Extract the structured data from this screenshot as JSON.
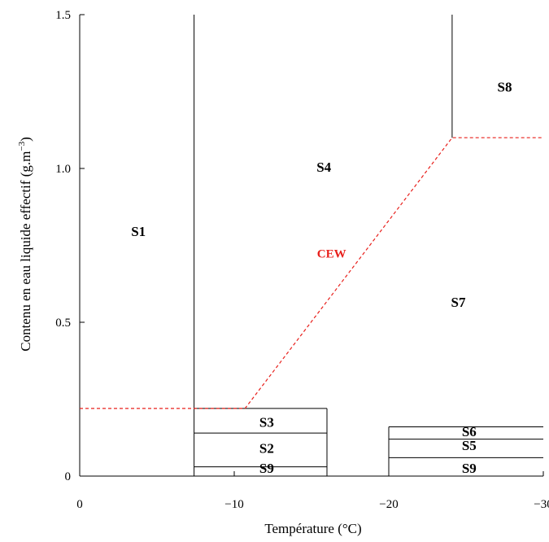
{
  "chart_data": {
    "type": "diagram",
    "xlabel": "Température (°C)",
    "ylabel_main": "Contenu en eau liquide effectif (g.m",
    "ylabel_sup": "−3",
    "ylabel_close": ")",
    "xlim": [
      0,
      -30
    ],
    "ylim": [
      0,
      1.5
    ],
    "x_ticks": [
      {
        "value": 0,
        "label": "0"
      },
      {
        "value": -10,
        "label": "−10"
      },
      {
        "value": -20,
        "label": "−20"
      },
      {
        "value": -30,
        "label": "−30"
      }
    ],
    "y_ticks": [
      {
        "value": 0,
        "label": "0"
      },
      {
        "value": 0.5,
        "label": "0.5"
      },
      {
        "value": 1.0,
        "label": "1.0"
      },
      {
        "value": 1.5,
        "label": "1.5"
      }
    ],
    "boundaries": [
      {
        "name": "vline-7.4",
        "x1": -7.4,
        "y1": 0,
        "x2": -7.4,
        "y2": 1.5
      },
      {
        "name": "vline-24.1",
        "x1": -24.1,
        "y1": 1.1,
        "x2": -24.1,
        "y2": 1.5
      },
      {
        "name": "box-left-top",
        "x1": -7.4,
        "y1": 0.22,
        "x2": -16.0,
        "y2": 0.22
      },
      {
        "name": "box-left-right",
        "x1": -16.0,
        "y1": 0,
        "x2": -16.0,
        "y2": 0.22
      },
      {
        "name": "box-left-s3",
        "x1": -7.4,
        "y1": 0.14,
        "x2": -16.0,
        "y2": 0.14
      },
      {
        "name": "box-left-s9",
        "x1": -7.4,
        "y1": 0.03,
        "x2": -16.0,
        "y2": 0.03
      },
      {
        "name": "box-right-top",
        "x1": -20.0,
        "y1": 0.16,
        "x2": -30,
        "y2": 0.16
      },
      {
        "name": "box-right-left",
        "x1": -20.0,
        "y1": 0,
        "x2": -20.0,
        "y2": 0.16
      },
      {
        "name": "box-right-s6",
        "x1": -20.0,
        "y1": 0.12,
        "x2": -30,
        "y2": 0.12
      },
      {
        "name": "box-right-s5",
        "x1": -20.0,
        "y1": 0.06,
        "x2": -30,
        "y2": 0.06
      }
    ],
    "cew_line": {
      "label": "CEW",
      "color": "#e8201c",
      "points": [
        [
          0,
          0.22
        ],
        [
          -10.7,
          0.22
        ],
        [
          -24.1,
          1.1
        ],
        [
          -30,
          1.1
        ]
      ]
    },
    "regions": [
      {
        "label": "S1",
        "x": -3.8,
        "y": 0.78
      },
      {
        "label": "S4",
        "x": -15.8,
        "y": 0.99
      },
      {
        "label": "S8",
        "x": -27.5,
        "y": 1.25
      },
      {
        "label": "S7",
        "x": -24.5,
        "y": 0.55
      },
      {
        "label": "S3",
        "x": -12.1,
        "y": 0.16
      },
      {
        "label": "S2",
        "x": -12.1,
        "y": 0.075
      },
      {
        "label": "S9",
        "x": -12.1,
        "y": 0.01
      },
      {
        "label": "S6",
        "x": -25.2,
        "y": 0.13
      },
      {
        "label": "S5",
        "x": -25.2,
        "y": 0.085
      },
      {
        "label": "S9",
        "x": -25.2,
        "y": 0.01
      }
    ],
    "cew_label_pos": {
      "x": -16.3,
      "y": 0.71
    }
  }
}
